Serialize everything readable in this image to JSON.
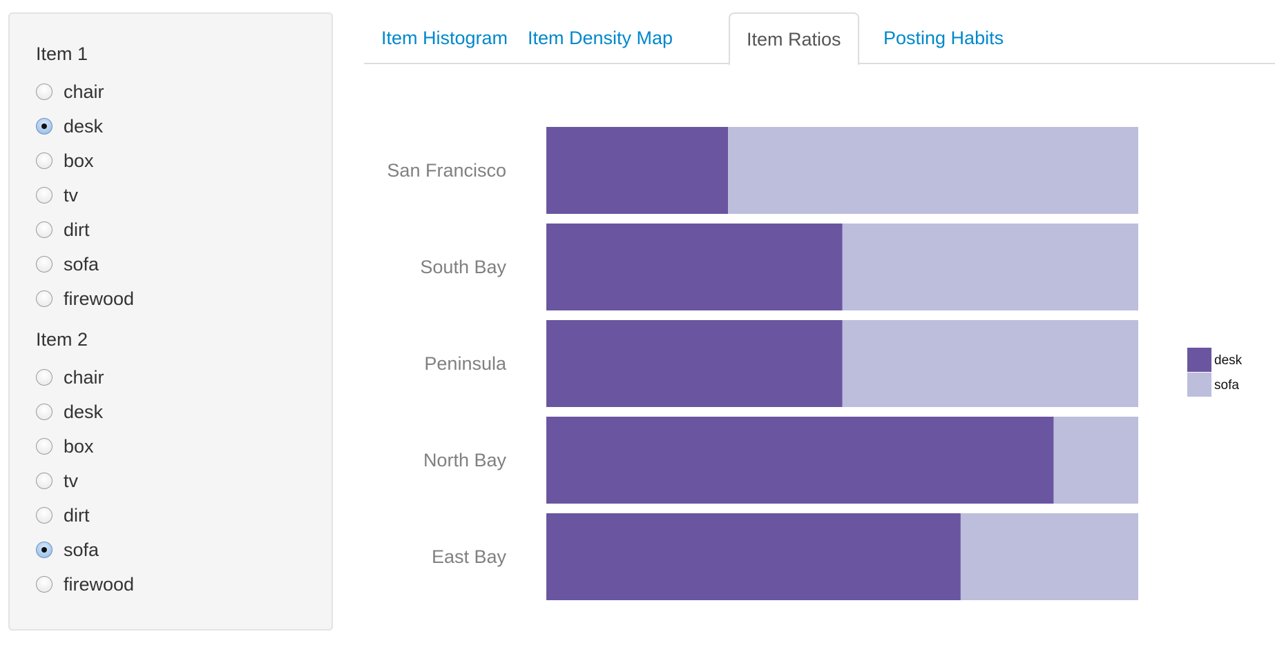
{
  "sidebar": {
    "groups": [
      {
        "title": "Item 1",
        "options": [
          "chair",
          "desk",
          "box",
          "tv",
          "dirt",
          "sofa",
          "firewood"
        ],
        "selected": "desk"
      },
      {
        "title": "Item 2",
        "options": [
          "chair",
          "desk",
          "box",
          "tv",
          "dirt",
          "sofa",
          "firewood"
        ],
        "selected": "sofa"
      }
    ]
  },
  "tabs": [
    {
      "label": "Item Histogram",
      "active": false
    },
    {
      "label": "Item Density Map",
      "active": false
    },
    {
      "label": "Item Ratios",
      "active": true
    },
    {
      "label": "Posting Habits",
      "active": false
    }
  ],
  "chart_data": {
    "type": "bar",
    "orientation": "horizontal",
    "stacked": "percent",
    "categories": [
      "San Francisco",
      "South Bay",
      "Peninsula",
      "North Bay",
      "East Bay"
    ],
    "series": [
      {
        "name": "desk",
        "color": "#6a55a0",
        "values": [
          0.307,
          0.5,
          0.5,
          0.857,
          0.7
        ]
      },
      {
        "name": "sofa",
        "color": "#bdbddc",
        "values": [
          0.693,
          0.5,
          0.5,
          0.143,
          0.3
        ]
      }
    ],
    "legend": "right",
    "grid": false
  }
}
